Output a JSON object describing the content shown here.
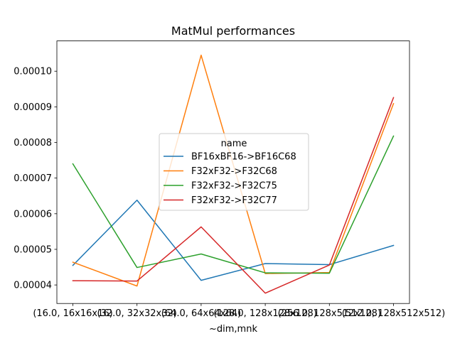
{
  "chart_data": {
    "type": "line",
    "title": "MatMul performances",
    "xlabel": "~dim,mnk",
    "ylabel": "",
    "categories": [
      "(16.0, 16x16x16)",
      "(32.0, 32x32x32)",
      "(64.0, 64x64x64)",
      "(128.0, 128x128x128)",
      "(256.0, 128x512x128)",
      "(512.0, 128x512x512)"
    ],
    "xtick_labels": [
      "(16.0, 16x16x16)",
      "(32.0, 32x32x32)",
      "(64.0, 64x64x64)",
      "(128.0, 128x128x128)",
      "(256.0, 128x512x128)",
      "(512.0, 128x512x512)"
    ],
    "ylim": [
      3.48e-05,
      0.0001085
    ],
    "yticks": [
      4e-05,
      5e-05,
      6e-05,
      7e-05,
      8e-05,
      9e-05,
      0.0001
    ],
    "ytick_labels": [
      "0.00004",
      "0.00005",
      "0.00006",
      "0.00007",
      "0.00008",
      "0.00009",
      "0.00010"
    ],
    "grid": false,
    "legend": {
      "title": "name",
      "placement": "center"
    },
    "series": [
      {
        "name": "BF16xBF16->BF16C68",
        "color": "#1f77b4",
        "values": [
          4.55e-05,
          6.38e-05,
          4.13e-05,
          4.6e-05,
          4.57e-05,
          5.11e-05
        ]
      },
      {
        "name": "F32xF32->F32C68",
        "color": "#ff7f0e",
        "values": [
          4.64e-05,
          3.97e-05,
          0.0001045,
          4.32e-05,
          4.35e-05,
          9.09e-05
        ]
      },
      {
        "name": "F32xF32->F32C75",
        "color": "#2ca02c",
        "values": [
          7.4e-05,
          4.49e-05,
          4.87e-05,
          4.34e-05,
          4.33e-05,
          8.18e-05
        ]
      },
      {
        "name": "F32xF32->F32C77",
        "color": "#d62728",
        "values": [
          4.12e-05,
          4.11e-05,
          5.63e-05,
          3.77e-05,
          4.56e-05,
          9.26e-05
        ]
      }
    ]
  }
}
